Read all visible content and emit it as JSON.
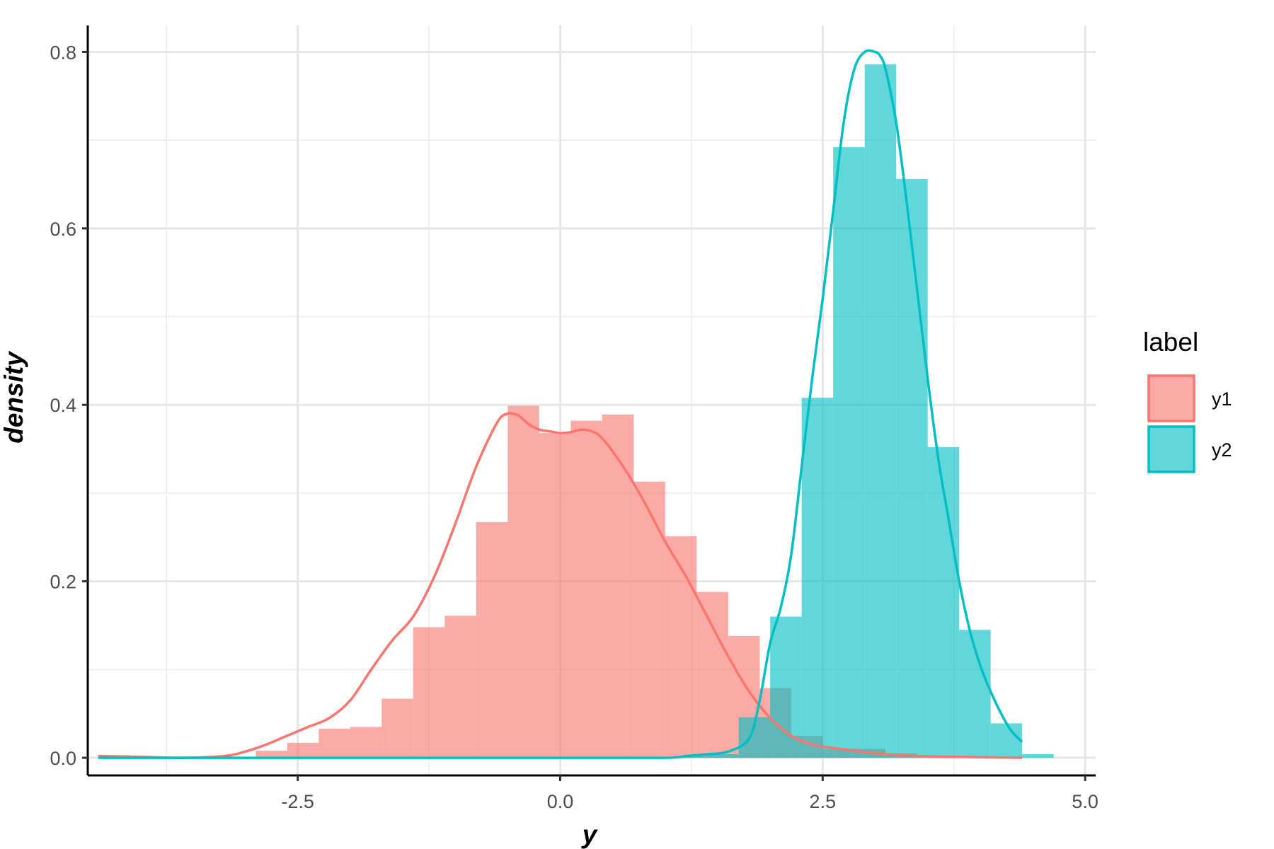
{
  "chart_data": {
    "type": "histogram",
    "xlabel": "y",
    "ylabel": "density",
    "xlim": [
      -4.5,
      5.1
    ],
    "ylim": [
      -0.02,
      0.83
    ],
    "x_ticks": [
      -2.5,
      0.0,
      2.5,
      5.0
    ],
    "x_tick_labels": [
      "-2.5",
      "0.0",
      "2.5",
      "5.0"
    ],
    "y_ticks": [
      0.0,
      0.2,
      0.4,
      0.6,
      0.8
    ],
    "y_tick_labels": [
      "0.0",
      "0.2",
      "0.4",
      "0.6",
      "0.8"
    ],
    "grid": true,
    "legend": {
      "title": "label",
      "position": "right"
    },
    "bin_width": 0.3,
    "series": [
      {
        "name": "y1",
        "color": "#F8766D",
        "bins_start": -4.4,
        "histogram_values": [
          0.003,
          0.001,
          0.0,
          0.0,
          0.0,
          0.008,
          0.017,
          0.033,
          0.035,
          0.067,
          0.148,
          0.161,
          0.267,
          0.399,
          0.368,
          0.382,
          0.389,
          0.313,
          0.251,
          0.188,
          0.138,
          0.079,
          0.025,
          0.01,
          0.01,
          0.005,
          0.002,
          0.001,
          0.001,
          0.0,
          0.0
        ],
        "density_x": [
          -4.4,
          -4.0,
          -3.6,
          -3.2,
          -3.0,
          -2.8,
          -2.6,
          -2.4,
          -2.2,
          -2.0,
          -1.8,
          -1.6,
          -1.4,
          -1.2,
          -1.0,
          -0.8,
          -0.6,
          -0.5,
          -0.4,
          -0.3,
          -0.2,
          -0.1,
          0.0,
          0.1,
          0.2,
          0.3,
          0.4,
          0.6,
          0.8,
          1.0,
          1.2,
          1.4,
          1.6,
          1.8,
          2.0,
          2.2,
          2.4,
          2.6,
          2.8,
          3.0,
          3.4,
          3.8,
          4.4
        ],
        "density_y": [
          0.002,
          0.001,
          0.0,
          0.002,
          0.007,
          0.015,
          0.025,
          0.035,
          0.045,
          0.065,
          0.1,
          0.133,
          0.16,
          0.205,
          0.265,
          0.33,
          0.38,
          0.39,
          0.388,
          0.378,
          0.372,
          0.37,
          0.368,
          0.369,
          0.372,
          0.37,
          0.362,
          0.33,
          0.29,
          0.245,
          0.205,
          0.16,
          0.115,
          0.075,
          0.045,
          0.025,
          0.015,
          0.011,
          0.008,
          0.005,
          0.002,
          0.001,
          0.0
        ]
      },
      {
        "name": "y2",
        "color": "#00BFC4",
        "bins_start": 0.8,
        "histogram_values": [
          0.0,
          0.002,
          0.004,
          0.046,
          0.16,
          0.408,
          0.692,
          0.786,
          0.656,
          0.352,
          0.145,
          0.039,
          0.004,
          0.0
        ],
        "density_x": [
          -4.4,
          -3.0,
          -2.0,
          0.0,
          1.0,
          1.2,
          1.4,
          1.6,
          1.8,
          1.9,
          2.0,
          2.1,
          2.2,
          2.3,
          2.4,
          2.5,
          2.6,
          2.7,
          2.8,
          2.9,
          3.0,
          3.05,
          3.1,
          3.2,
          3.3,
          3.4,
          3.5,
          3.6,
          3.7,
          3.8,
          3.9,
          4.0,
          4.1,
          4.2,
          4.3,
          4.4
        ],
        "density_y": [
          0.0,
          0.0,
          0.0,
          0.0,
          0.0,
          0.002,
          0.004,
          0.007,
          0.022,
          0.065,
          0.13,
          0.17,
          0.23,
          0.33,
          0.43,
          0.52,
          0.62,
          0.72,
          0.78,
          0.8,
          0.8,
          0.795,
          0.78,
          0.72,
          0.63,
          0.53,
          0.43,
          0.34,
          0.27,
          0.2,
          0.145,
          0.105,
          0.075,
          0.05,
          0.03,
          0.018
        ]
      }
    ]
  }
}
